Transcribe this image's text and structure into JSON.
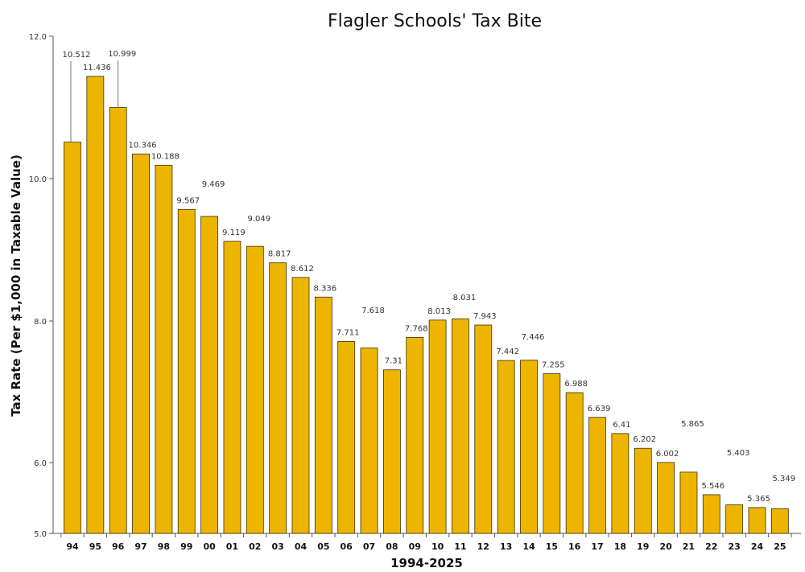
{
  "chart_data": {
    "type": "bar",
    "title": "Flagler Schools' Tax Bite",
    "xlabel": "1994-2025",
    "ylabel": "Tax Rate (Per $1,000 in Taxable Value)",
    "ylim": [
      5.0,
      12.0
    ],
    "yticks": [
      "5.0",
      "6.0",
      "8.0",
      "10.0",
      "12.0"
    ],
    "ytick_values": [
      5.0,
      6.0,
      8.0,
      10.0,
      12.0
    ],
    "grid": false,
    "bar_color": "#EDB500",
    "categories": [
      "94",
      "95",
      "96",
      "97",
      "98",
      "99",
      "00",
      "01",
      "02",
      "03",
      "04",
      "05",
      "06",
      "07",
      "08",
      "09",
      "10",
      "11",
      "12",
      "13",
      "14",
      "15",
      "16",
      "17",
      "18",
      "19",
      "20",
      "21",
      "22",
      "23",
      "24",
      "25"
    ],
    "values": [
      10.512,
      11.436,
      10.999,
      10.346,
      10.188,
      9.567,
      9.469,
      9.119,
      9.049,
      8.817,
      8.612,
      8.336,
      7.711,
      7.618,
      7.31,
      7.768,
      8.013,
      8.031,
      7.943,
      7.442,
      7.446,
      7.255,
      6.988,
      6.639,
      6.41,
      6.202,
      6.002,
      5.865,
      5.546,
      5.403,
      5.365,
      5.349
    ],
    "data_labels": [
      "10.512",
      "11.436",
      "10.999",
      "10.346",
      "10.188",
      "9.567",
      "9.469",
      "9.119",
      "9.049",
      "8.817",
      "8.612",
      "8.336",
      "7.711",
      "7.618",
      "7.31",
      "7.768",
      "8.013",
      "8.031",
      "7.943",
      "7.442",
      "7.446",
      "7.255",
      "6.988",
      "6.639",
      "6.41",
      "6.202",
      "6.002",
      "5.865",
      "5.546",
      "5.403",
      "5.365",
      "5.349"
    ]
  }
}
